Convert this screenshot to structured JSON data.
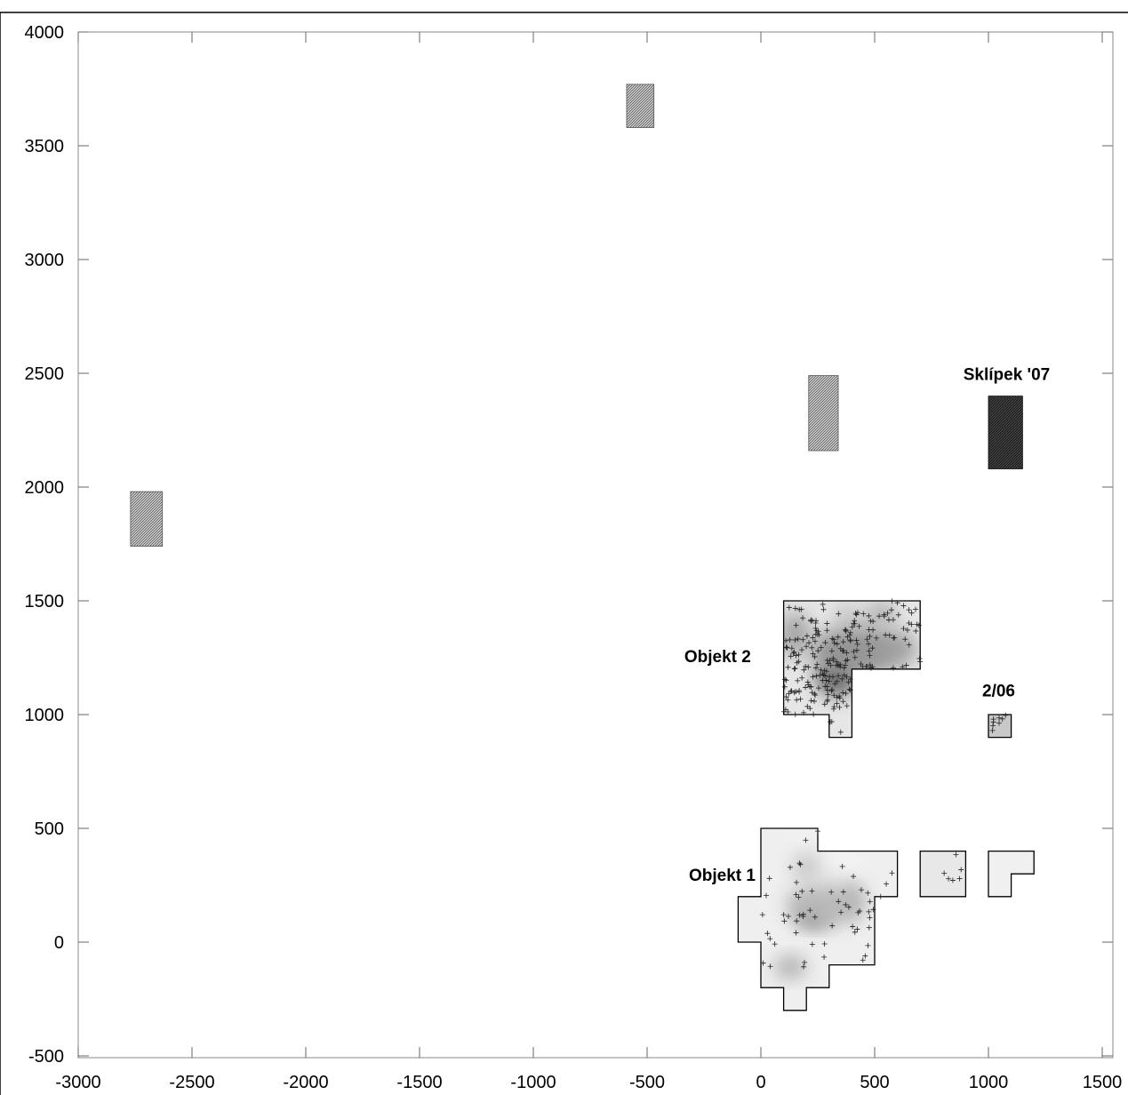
{
  "chart_data": {
    "type": "scatter",
    "xlim": [
      -3000,
      1550
    ],
    "ylim": [
      -500,
      4050
    ],
    "x_ticks": [
      -3000,
      -2500,
      -2000,
      -1500,
      -1000,
      -500,
      0,
      500,
      1000,
      1500
    ],
    "y_ticks": [
      -500,
      0,
      500,
      1000,
      1500,
      2000,
      2500,
      3000,
      3500,
      4000
    ],
    "x_tick_labels": [
      "-3000",
      "-2500",
      "-2000",
      "-1500",
      "-1000",
      "-500",
      "0",
      "500",
      "1000",
      "1500"
    ],
    "y_tick_labels": [
      "-500",
      "0",
      "500",
      "1000",
      "1500",
      "2000",
      "2500",
      "3000",
      "3500",
      "4000"
    ],
    "grid": false,
    "hatched_areas": [
      {
        "name": "hatched-area-1",
        "x": [
          -2770,
          -2630
        ],
        "y": [
          1740,
          1980
        ]
      },
      {
        "name": "hatched-area-2",
        "x": [
          -590,
          -470
        ],
        "y": [
          3580,
          3770
        ]
      },
      {
        "name": "hatched-area-3",
        "x": [
          210,
          340
        ],
        "y": [
          2160,
          2490
        ]
      }
    ],
    "dark_areas": [
      {
        "name": "sklipek-area",
        "x": [
          1000,
          1150
        ],
        "y": [
          2080,
          2400
        ]
      }
    ],
    "polygons": [
      {
        "name": "objekt-2-outline",
        "points": [
          [
            100,
            1500
          ],
          [
            700,
            1500
          ],
          [
            700,
            1200
          ],
          [
            400,
            1200
          ],
          [
            400,
            900
          ],
          [
            300,
            900
          ],
          [
            300,
            1000
          ],
          [
            100,
            1000
          ]
        ]
      },
      {
        "name": "objekt-1-outline",
        "points": [
          [
            0,
            500
          ],
          [
            250,
            500
          ],
          [
            250,
            400
          ],
          [
            600,
            400
          ],
          [
            600,
            200
          ],
          [
            500,
            200
          ],
          [
            500,
            -100
          ],
          [
            300,
            -100
          ],
          [
            300,
            -200
          ],
          [
            200,
            -200
          ],
          [
            200,
            -300
          ],
          [
            100,
            -300
          ],
          [
            100,
            -200
          ],
          [
            0,
            -200
          ],
          [
            0,
            0
          ],
          [
            -100,
            0
          ],
          [
            -100,
            200
          ],
          [
            0,
            200
          ]
        ]
      },
      {
        "name": "area-700-900-outline",
        "points": [
          [
            700,
            400
          ],
          [
            900,
            400
          ],
          [
            900,
            200
          ],
          [
            700,
            200
          ]
        ]
      },
      {
        "name": "area-1000-1200-outline",
        "points": [
          [
            1000,
            400
          ],
          [
            1200,
            400
          ],
          [
            1200,
            300
          ],
          [
            1100,
            300
          ],
          [
            1100,
            200
          ],
          [
            1000,
            200
          ]
        ]
      },
      {
        "name": "area-2-06-outline",
        "points": [
          [
            1000,
            1000
          ],
          [
            1100,
            1000
          ],
          [
            1100,
            900
          ],
          [
            1000,
            900
          ]
        ]
      }
    ],
    "annotations": [
      {
        "name": "label-objekt-2",
        "text": "Objekt 2",
        "x": -190,
        "y": 1230
      },
      {
        "name": "label-objekt-1",
        "text": "Objekt 1",
        "x": -170,
        "y": 270
      },
      {
        "name": "label-2-06",
        "text": "2/06",
        "x": 1045,
        "y": 1080
      },
      {
        "name": "label-sklipek",
        "text": "Sklípek '07",
        "x": 1080,
        "y": 2470
      }
    ],
    "point_clusters": [
      {
        "name": "objekt-2-finds",
        "cx": 300,
        "cy": 1200,
        "spread_x": 160,
        "spread_y": 160,
        "count": 240,
        "x_range": [
          100,
          700
        ],
        "y_range": [
          1000,
          1500
        ]
      },
      {
        "name": "objekt-1-finds",
        "cx": 250,
        "cy": 200,
        "spread_x": 180,
        "spread_y": 180,
        "count": 60,
        "x_range": [
          0,
          580
        ],
        "y_range": [
          -180,
          480
        ]
      },
      {
        "name": "area-700-900-finds",
        "cx": 820,
        "cy": 300,
        "spread_x": 60,
        "spread_y": 60,
        "count": 6,
        "x_range": [
          720,
          890
        ],
        "y_range": [
          210,
          390
        ]
      },
      {
        "name": "area-2-06-finds",
        "cx": 1050,
        "cy": 960,
        "spread_x": 30,
        "spread_y": 25,
        "count": 8,
        "x_range": [
          1010,
          1090
        ],
        "y_range": [
          910,
          990
        ]
      }
    ],
    "density_blobs": [
      {
        "name": "o2-core",
        "cx": 330,
        "cy": 1160,
        "rx": 90,
        "ry": 80,
        "level": 0.85
      },
      {
        "name": "o2-mid",
        "cx": 420,
        "cy": 1280,
        "rx": 200,
        "ry": 110,
        "level": 0.55
      },
      {
        "name": "o2-east",
        "cx": 600,
        "cy": 1290,
        "rx": 90,
        "ry": 70,
        "level": 0.45
      },
      {
        "name": "o2-west",
        "cx": 150,
        "cy": 1350,
        "rx": 70,
        "ry": 100,
        "level": 0.45
      },
      {
        "name": "o2-north",
        "cx": 480,
        "cy": 1440,
        "rx": 150,
        "ry": 55,
        "level": 0.35
      },
      {
        "name": "o1-core",
        "cx": 230,
        "cy": 120,
        "rx": 70,
        "ry": 50,
        "level": 0.85
      },
      {
        "name": "o1-mid",
        "cx": 260,
        "cy": 160,
        "rx": 150,
        "ry": 100,
        "level": 0.3
      },
      {
        "name": "o1-east",
        "cx": 400,
        "cy": 180,
        "rx": 60,
        "ry": 90,
        "level": 0.35
      },
      {
        "name": "o1-south",
        "cx": 130,
        "cy": -110,
        "rx": 70,
        "ry": 50,
        "level": 0.4
      },
      {
        "name": "o1-north",
        "cx": 200,
        "cy": 330,
        "rx": 60,
        "ry": 60,
        "level": 0.25
      }
    ]
  }
}
